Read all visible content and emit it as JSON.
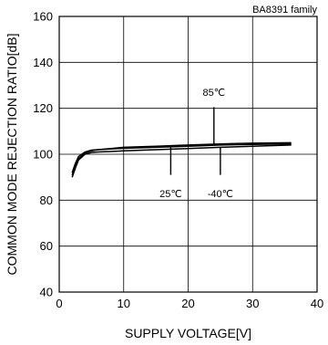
{
  "chart_data": {
    "type": "line",
    "family_label": "BA8391 family",
    "xlabel": "SUPPLY VOLTAGE[V]",
    "ylabel": "COMMON MODE REJECTION RATIO[dB]",
    "xlim": [
      0,
      40
    ],
    "ylim": [
      40,
      160
    ],
    "x_ticks": [
      0,
      10,
      20,
      30,
      40
    ],
    "y_ticks": [
      40,
      60,
      80,
      100,
      120,
      140,
      160
    ],
    "grid": true,
    "series": [
      {
        "name": "85℃",
        "x": [
          2,
          2.5,
          3,
          4,
          5,
          6,
          8,
          10,
          15,
          20,
          25,
          30,
          36
        ],
        "y": [
          91,
          95,
          98,
          100.5,
          101.5,
          102,
          102.5,
          103,
          103.5,
          104,
          104.5,
          104.8,
          105
        ]
      },
      {
        "name": "25℃",
        "x": [
          2,
          2.5,
          3,
          4,
          5,
          6,
          8,
          10,
          15,
          20,
          25,
          30,
          36
        ],
        "y": [
          92,
          96,
          99,
          101,
          101.8,
          102,
          102.3,
          102.6,
          103,
          103.5,
          104,
          104.3,
          104.5
        ]
      },
      {
        "name": "-40℃",
        "x": [
          2,
          2.5,
          3,
          4,
          5,
          6,
          8,
          10,
          15,
          20,
          25,
          30,
          36
        ],
        "y": [
          90,
          94,
          97.5,
          100,
          100.8,
          101,
          101.2,
          101.5,
          102,
          102.5,
          103,
          103.5,
          104
        ]
      }
    ],
    "annotations": [
      {
        "text": "85℃",
        "label_x": 24,
        "label_y": 127,
        "leader_from": [
          24,
          120.5
        ],
        "leader_to": [
          24,
          104.3
        ]
      },
      {
        "text": "25℃",
        "label_x": 17.3,
        "label_y": 83,
        "leader_from": [
          17.3,
          91
        ],
        "leader_to": [
          17.3,
          103.2
        ]
      },
      {
        "text": "-40℃",
        "label_x": 25,
        "label_y": 83,
        "leader_from": [
          25,
          91
        ],
        "leader_to": [
          25,
          103
        ]
      }
    ]
  }
}
